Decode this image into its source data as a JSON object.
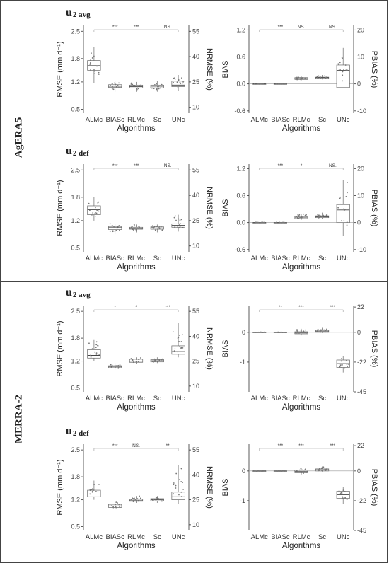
{
  "sections": [
    {
      "name": "AgERA5",
      "subs": [
        "u2 avg",
        "u2 def"
      ]
    },
    {
      "name": "MERRA-2",
      "subs": [
        "u2 avg",
        "u2 def"
      ]
    }
  ],
  "chart_data": [
    {
      "type": "box",
      "panel": "AgERA5 u2 avg RMSE",
      "categories": [
        "ALMc",
        "BIASc",
        "RLMc",
        "Sc",
        "UNc"
      ],
      "xlabel": "Algorithms",
      "ylabel": "RMSE (mm d⁻¹)",
      "y2label": "NRMSE (%)",
      "ylim": [
        0.4,
        2.65
      ],
      "yticks": [
        "0.5",
        "1.2",
        "1.8",
        "2.5"
      ],
      "yticks_values": [
        0.5,
        1.2,
        1.8,
        2.5
      ],
      "y2ticks": [
        "10",
        "25",
        "40",
        "55"
      ],
      "y2ticks_values": [
        0.55,
        1.2,
        1.85,
        2.5
      ],
      "boxes": [
        [
          1.18,
          1.5,
          1.62,
          1.75,
          2.1
        ],
        [
          0.95,
          1.06,
          1.09,
          1.13,
          1.22
        ],
        [
          0.95,
          1.05,
          1.08,
          1.12,
          1.2
        ],
        [
          0.95,
          1.05,
          1.09,
          1.12,
          1.22
        ],
        [
          0.98,
          1.08,
          1.12,
          1.22,
          1.38
        ]
      ],
      "significance": [
        "***",
        "***",
        "NS."
      ]
    },
    {
      "type": "box",
      "panel": "AgERA5 u2 avg BIAS",
      "categories": [
        "ALMc",
        "BIASc",
        "RLMc",
        "Sc",
        "UNc"
      ],
      "xlabel": "Algorithms",
      "ylabel": "BIAS",
      "y2label": "PBIAS (%)",
      "ylim": [
        -0.65,
        1.3
      ],
      "yticks": [
        "-0.6",
        "0.0",
        "0.6",
        "1.2"
      ],
      "yticks_values": [
        -0.6,
        0.0,
        0.6,
        1.2
      ],
      "y2ticks": [
        "-10",
        "0",
        "10",
        "20"
      ],
      "y2ticks_values": [
        -0.6,
        0.0,
        0.6,
        1.2
      ],
      "boxes": [
        [
          -0.005,
          -0.002,
          0.0,
          0.002,
          0.005
        ],
        [
          -0.005,
          -0.002,
          0.0,
          0.002,
          0.005
        ],
        [
          0.08,
          0.1,
          0.12,
          0.14,
          0.17
        ],
        [
          0.1,
          0.12,
          0.14,
          0.15,
          0.2
        ],
        [
          -0.05,
          -0.08,
          0.3,
          0.42,
          0.8
        ]
      ],
      "significance": [
        "***",
        "NS.",
        "NS."
      ]
    },
    {
      "type": "box",
      "panel": "AgERA5 u2 def RMSE",
      "categories": [
        "ALMc",
        "BIASc",
        "RLMc",
        "Sc",
        "UNc"
      ],
      "xlabel": "Algorithms",
      "ylabel": "RMSE (mm d⁻¹)",
      "y2label": "NRMSE (%)",
      "ylim": [
        0.4,
        2.65
      ],
      "yticks": [
        "0.5",
        "1.2",
        "1.8",
        "2.5"
      ],
      "yticks_values": [
        0.5,
        1.2,
        1.8,
        2.5
      ],
      "y2ticks": [
        "10",
        "25",
        "40",
        "55"
      ],
      "y2ticks_values": [
        0.55,
        1.2,
        1.85,
        2.5
      ],
      "boxes": [
        [
          1.2,
          1.35,
          1.48,
          1.58,
          1.8
        ],
        [
          0.85,
          0.97,
          1.02,
          1.05,
          1.12
        ],
        [
          0.9,
          0.98,
          1.0,
          1.03,
          1.1
        ],
        [
          0.9,
          0.98,
          1.01,
          1.04,
          1.1
        ],
        [
          0.92,
          1.03,
          1.08,
          1.12,
          1.35
        ]
      ],
      "significance": [
        "***",
        "***",
        "NS."
      ]
    },
    {
      "type": "box",
      "panel": "AgERA5 u2 def BIAS",
      "categories": [
        "ALMc",
        "BIASc",
        "RLMc",
        "Sc",
        "UNc"
      ],
      "xlabel": "Algorithms",
      "ylabel": "BIAS",
      "y2label": "PBIAS (%)",
      "ylim": [
        -0.65,
        1.3
      ],
      "yticks": [
        "-0.6",
        "0.0",
        "0.6",
        "1.2"
      ],
      "yticks_values": [
        -0.6,
        0.0,
        0.6,
        1.2
      ],
      "y2ticks": [
        "-10",
        "0",
        "10",
        "20"
      ],
      "y2ticks_values": [
        -0.6,
        0.0,
        0.6,
        1.2
      ],
      "boxes": [
        [
          -0.005,
          -0.002,
          0.0,
          0.002,
          0.005
        ],
        [
          -0.005,
          -0.002,
          0.0,
          0.002,
          0.005
        ],
        [
          0.06,
          0.09,
          0.12,
          0.14,
          0.2
        ],
        [
          0.08,
          0.11,
          0.13,
          0.15,
          0.22
        ],
        [
          -0.3,
          0.0,
          0.28,
          0.4,
          0.95
        ]
      ],
      "significance": [
        "***",
        "*",
        "NS."
      ]
    },
    {
      "type": "box",
      "panel": "MERRA-2 u2 avg RMSE",
      "categories": [
        "ALMc",
        "BIASc",
        "RLMc",
        "Sc",
        "UNc"
      ],
      "xlabel": "Algorithms",
      "ylabel": "RMSE (mm d⁻¹)",
      "y2label": "NRMSE (%)",
      "ylim": [
        0.4,
        2.65
      ],
      "yticks": [
        "0.5",
        "1.2",
        "1.8",
        "2.5"
      ],
      "yticks_values": [
        0.5,
        1.2,
        1.8,
        2.5
      ],
      "y2ticks": [
        "10",
        "25",
        "40",
        "55"
      ],
      "y2ticks_values": [
        0.55,
        1.2,
        1.85,
        2.5
      ],
      "boxes": [
        [
          1.2,
          1.28,
          1.35,
          1.5,
          1.75
        ],
        [
          0.98,
          1.03,
          1.06,
          1.08,
          1.15
        ],
        [
          1.12,
          1.17,
          1.2,
          1.25,
          1.3
        ],
        [
          1.15,
          1.18,
          1.21,
          1.24,
          1.3
        ],
        [
          1.3,
          1.38,
          1.45,
          1.6,
          2.2
        ]
      ],
      "significance": [
        "*",
        "*",
        "***"
      ]
    },
    {
      "type": "box",
      "panel": "MERRA-2 u2 avg BIAS",
      "categories": [
        "ALMc",
        "BIASc",
        "RLMc",
        "Sc",
        "UNc"
      ],
      "xlabel": "Algorithms",
      "ylabel": "BIAS",
      "y2label": "PBIAS (%)",
      "ylim": [
        -2.0,
        0.9
      ],
      "yticks": [
        "-1",
        "0"
      ],
      "yticks_values": [
        -1,
        0
      ],
      "y2ticks": [
        "-45",
        "-22",
        "0",
        "22"
      ],
      "y2ticks_values": [
        -2.0,
        -1.0,
        0.0,
        0.85
      ],
      "boxes": [
        [
          -0.01,
          -0.005,
          0.0,
          0.005,
          0.01
        ],
        [
          -0.01,
          -0.005,
          0.0,
          0.005,
          0.01
        ],
        [
          -0.1,
          -0.05,
          -0.02,
          0.02,
          0.12
        ],
        [
          -0.02,
          0.0,
          0.04,
          0.07,
          0.15
        ],
        [
          -1.35,
          -1.18,
          -1.05,
          -0.93,
          -0.8
        ]
      ],
      "significance": [
        "**",
        "***",
        "***"
      ]
    },
    {
      "type": "box",
      "panel": "MERRA-2 u2 def RMSE",
      "categories": [
        "ALMc",
        "BIASc",
        "RLMc",
        "Sc",
        "UNc"
      ],
      "xlabel": "Algorithms",
      "ylabel": "RMSE (mm d⁻¹)",
      "y2label": "NRMSE (%)",
      "ylim": [
        0.4,
        2.65
      ],
      "yticks": [
        "0.5",
        "1.2",
        "1.8",
        "2.5"
      ],
      "yticks_values": [
        0.5,
        1.2,
        1.8,
        2.5
      ],
      "y2ticks": [
        "10",
        "25",
        "40",
        "55"
      ],
      "y2ticks_values": [
        0.55,
        1.2,
        1.85,
        2.5
      ],
      "boxes": [
        [
          1.2,
          1.28,
          1.35,
          1.45,
          1.7
        ],
        [
          0.95,
          1.0,
          1.04,
          1.08,
          1.15
        ],
        [
          1.12,
          1.16,
          1.19,
          1.22,
          1.3
        ],
        [
          1.12,
          1.17,
          1.2,
          1.23,
          1.3
        ],
        [
          1.1,
          1.2,
          1.28,
          1.4,
          2.1
        ]
      ],
      "significance": [
        "***",
        "NS.",
        "**"
      ]
    },
    {
      "type": "box",
      "panel": "MERRA-2 u2 def BIAS",
      "categories": [
        "ALMc",
        "BIASc",
        "RLMc",
        "Sc",
        "UNc"
      ],
      "xlabel": "Algorithms",
      "ylabel": "BIAS",
      "y2label": "PBIAS (%)",
      "ylim": [
        -2.0,
        0.9
      ],
      "yticks": [
        "-1",
        "0"
      ],
      "yticks_values": [
        -1,
        0
      ],
      "y2ticks": [
        "-45",
        "-22",
        "0",
        "22"
      ],
      "y2ticks_values": [
        -2.0,
        -1.0,
        0.0,
        0.85
      ],
      "boxes": [
        [
          -0.01,
          -0.005,
          0.0,
          0.005,
          0.01
        ],
        [
          -0.01,
          -0.005,
          0.0,
          0.005,
          0.01
        ],
        [
          -0.12,
          -0.06,
          -0.02,
          0.02,
          0.1
        ],
        [
          -0.02,
          0.0,
          0.04,
          0.07,
          0.15
        ],
        [
          -1.1,
          -0.92,
          -0.8,
          -0.68,
          -0.55
        ]
      ],
      "significance": [
        "***",
        "***",
        "***"
      ]
    }
  ]
}
